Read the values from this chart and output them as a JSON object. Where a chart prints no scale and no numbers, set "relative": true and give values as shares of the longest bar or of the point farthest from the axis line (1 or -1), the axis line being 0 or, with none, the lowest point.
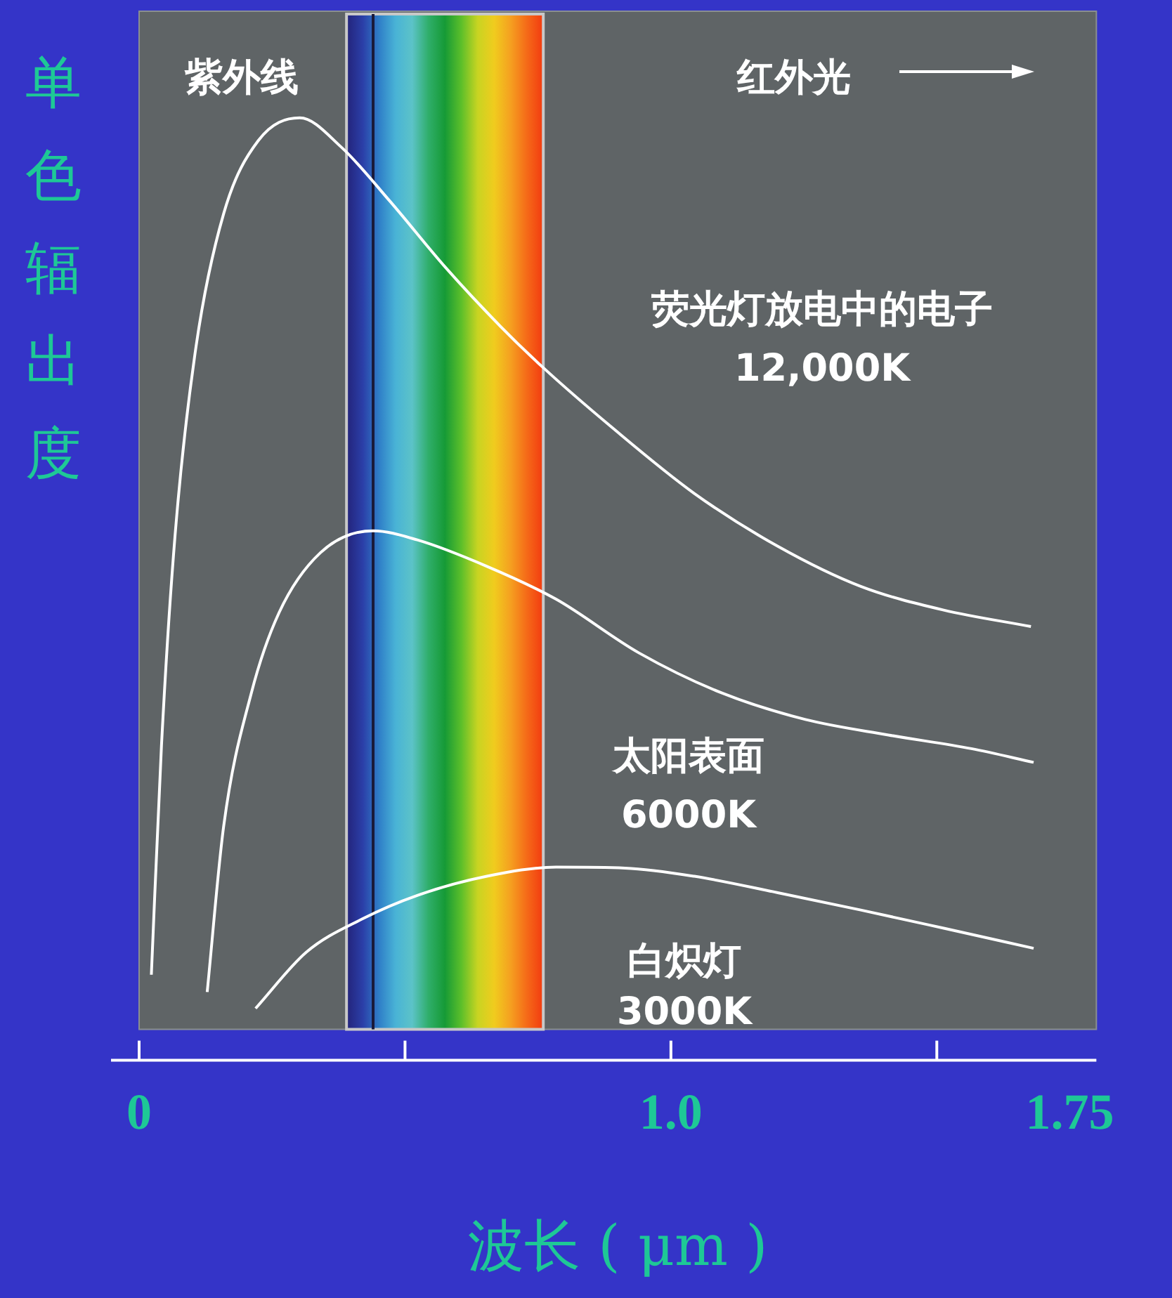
{
  "chart_data": {
    "type": "line",
    "relative": true,
    "xlabel": "波长 ( μm )",
    "ylabel": "单色辐出度",
    "xlim": [
      0,
      1.8
    ],
    "xticks": [
      {
        "value": 0,
        "label": "0"
      },
      {
        "value": 0.5,
        "label": null
      },
      {
        "value": 1.0,
        "label": "1.0"
      },
      {
        "value": 1.5,
        "label": null
      },
      {
        "value": 1.75,
        "label": "1.75"
      }
    ],
    "tick_labels": "x",
    "grid": false,
    "legend": false,
    "marker": "none",
    "line_style": "solid",
    "annotations": [
      "紫外线",
      "红外光"
    ],
    "bands": [
      {
        "axis": "x",
        "from": 0.39,
        "to": 0.76
      }
    ],
    "ref_lines": [
      {
        "axis": "x",
        "value": 0.44,
        "color": "#1a1a3a"
      }
    ],
    "series": [
      {
        "name": "荧光灯放电中的电子 12,000K",
        "color": "#ffffff",
        "x": [
          0.023,
          0.042,
          0.068,
          0.107,
          0.159,
          0.224,
          0.302,
          0.38,
          0.471,
          0.576,
          0.68,
          0.758,
          0.888,
          1.044,
          1.201,
          1.357,
          1.513,
          1.677
        ],
        "values": [
          0.06,
          0.311,
          0.545,
          0.749,
          0.895,
          0.975,
          1.0,
          0.968,
          0.909,
          0.836,
          0.771,
          0.727,
          0.661,
          0.588,
          0.53,
          0.486,
          0.46,
          0.442
        ]
      },
      {
        "name": "太阳表面 6000K",
        "color": "#ffffff",
        "x": [
          0.128,
          0.159,
          0.211,
          0.263,
          0.341,
          0.44,
          0.523,
          0.654,
          0.784,
          0.94,
          1.096,
          1.253,
          1.409,
          1.565,
          1.682
        ],
        "values": [
          0.041,
          0.223,
          0.369,
          0.457,
          0.523,
          0.547,
          0.537,
          0.508,
          0.472,
          0.413,
          0.369,
          0.34,
          0.323,
          0.308,
          0.293
        ]
      },
      {
        "name": "白炽灯 3000K",
        "color": "#ffffff",
        "x": [
          0.219,
          0.315,
          0.419,
          0.523,
          0.654,
          0.784,
          0.914,
          1.044,
          1.201,
          1.357,
          1.513,
          1.682
        ],
        "values": [
          0.023,
          0.085,
          0.121,
          0.147,
          0.168,
          0.178,
          0.177,
          0.168,
          0.15,
          0.131,
          0.111,
          0.089
        ]
      }
    ]
  }
}
